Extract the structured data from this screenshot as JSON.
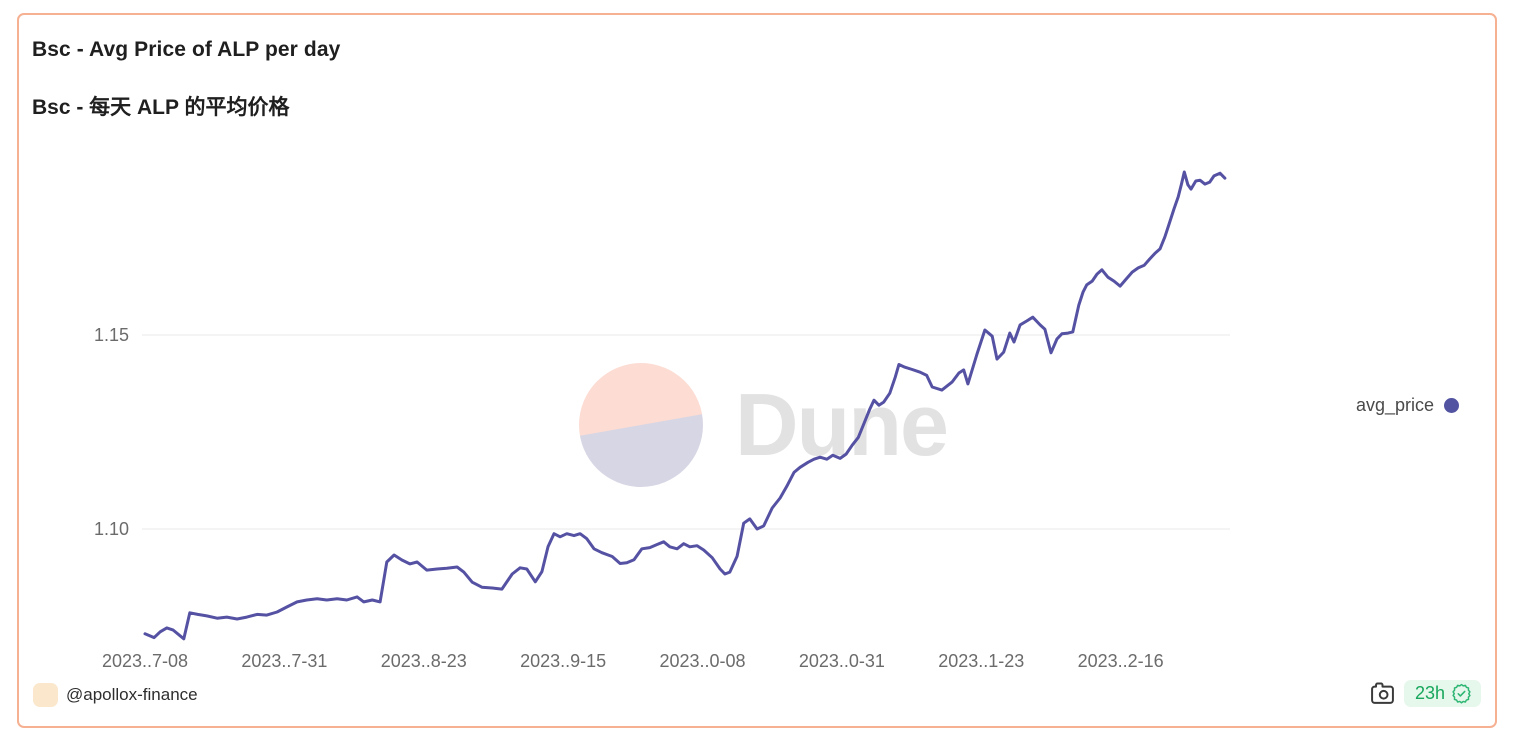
{
  "card": {
    "title": "Bsc - Avg Price of ALP per day",
    "subtitle": "Bsc - 每天 ALP 的平均价格",
    "border_color": "#f6b092"
  },
  "legend": {
    "label": "avg_price",
    "dot_color": "#5254a2"
  },
  "watermark": {
    "brand": "Dune",
    "circle_top_color": "#fcdcd3",
    "circle_bottom_color": "#d7d6e4"
  },
  "footer": {
    "author": "@apollox-finance",
    "avatar_color": "#fbe7cb",
    "refresh_badge": {
      "label": "23h",
      "text_color": "#18a75c",
      "bg_color": "#e6f7ec",
      "icon_color": "#2eb673"
    },
    "camera_icon_color": "#3a3a3a"
  },
  "chart_data": {
    "type": "line",
    "title": "Bsc - Avg Price of ALP per day",
    "xlabel": "",
    "ylabel": "",
    "series_name": "avg_price",
    "line_color": "#5551a3",
    "grid": "horizontal-only",
    "grid_color": "#e9e9e9",
    "legend_position": "right",
    "x_start_date": "2023-07-08",
    "x_unit": "days since 2023-07-08 (daily series)",
    "x_tick_days": [
      0,
      23,
      46,
      69,
      92,
      115,
      138,
      161
    ],
    "x_tick_labels": [
      "2023..7-08",
      "2023..7-31",
      "2023..8-23",
      "2023..9-15",
      "2023..0-08",
      "2023..0-31",
      "2023..1-23",
      "2023..2-16"
    ],
    "y_ticks": [
      1.15,
      1.1
    ],
    "ylim": [
      1.065,
      1.2
    ],
    "xlim_days": [
      0,
      179
    ],
    "points": [
      [
        0,
        1.073
      ],
      [
        1.5,
        1.072
      ],
      [
        2.5,
        1.0735
      ],
      [
        3.6,
        1.0745
      ],
      [
        4.6,
        1.074
      ],
      [
        6.4,
        1.0717
      ],
      [
        7.4,
        1.0784
      ],
      [
        8.7,
        1.078
      ],
      [
        10.2,
        1.0776
      ],
      [
        11.9,
        1.077
      ],
      [
        13.5,
        1.0773
      ],
      [
        15.2,
        1.0768
      ],
      [
        16.8,
        1.0773
      ],
      [
        18.5,
        1.078
      ],
      [
        20.1,
        1.0778
      ],
      [
        21.8,
        1.0786
      ],
      [
        23.4,
        1.0799
      ],
      [
        25.1,
        1.0812
      ],
      [
        26.7,
        1.0817
      ],
      [
        28.4,
        1.082
      ],
      [
        30,
        1.0817
      ],
      [
        31.7,
        1.082
      ],
      [
        33.3,
        1.0817
      ],
      [
        35,
        1.0825
      ],
      [
        36.1,
        1.0812
      ],
      [
        37.5,
        1.0817
      ],
      [
        38.8,
        1.0812
      ],
      [
        39.9,
        1.0915
      ],
      [
        41.1,
        1.0933
      ],
      [
        42.4,
        1.092
      ],
      [
        43.7,
        1.091
      ],
      [
        44.9,
        1.0915
      ],
      [
        46.5,
        1.0894
      ],
      [
        48.2,
        1.0897
      ],
      [
        49.8,
        1.0899
      ],
      [
        51.5,
        1.0902
      ],
      [
        52.6,
        1.0889
      ],
      [
        54,
        1.0863
      ],
      [
        55.6,
        1.085
      ],
      [
        57.3,
        1.0848
      ],
      [
        58.9,
        1.0845
      ],
      [
        60.6,
        1.0884
      ],
      [
        61.9,
        1.09
      ],
      [
        63,
        1.0897
      ],
      [
        64.4,
        1.0864
      ],
      [
        65.5,
        1.089
      ],
      [
        66.5,
        1.0954
      ],
      [
        67.5,
        1.0988
      ],
      [
        68.5,
        1.098
      ],
      [
        69.6,
        1.0988
      ],
      [
        70.8,
        1.0983
      ],
      [
        71.8,
        1.0988
      ],
      [
        72.9,
        1.0975
      ],
      [
        74.1,
        1.0949
      ],
      [
        75.4,
        1.0939
      ],
      [
        77.1,
        1.0929
      ],
      [
        78.4,
        1.0911
      ],
      [
        79.5,
        1.0913
      ],
      [
        80.7,
        1.0921
      ],
      [
        82,
        1.0949
      ],
      [
        83.3,
        1.0952
      ],
      [
        84.5,
        1.096
      ],
      [
        85.6,
        1.0967
      ],
      [
        86.6,
        1.0954
      ],
      [
        87.8,
        1.0949
      ],
      [
        88.9,
        1.0962
      ],
      [
        89.9,
        1.0954
      ],
      [
        91.1,
        1.0957
      ],
      [
        92.2,
        1.0946
      ],
      [
        93.6,
        1.0926
      ],
      [
        94.9,
        1.0897
      ],
      [
        95.7,
        1.0884
      ],
      [
        96.5,
        1.0889
      ],
      [
        97.7,
        1.093
      ],
      [
        98.8,
        1.1015
      ],
      [
        99.8,
        1.1026
      ],
      [
        101,
        1.1
      ],
      [
        102.1,
        1.1008
      ],
      [
        103.5,
        1.1054
      ],
      [
        104.8,
        1.108
      ],
      [
        105.9,
        1.111
      ],
      [
        107.1,
        1.1146
      ],
      [
        108.1,
        1.1159
      ],
      [
        109.4,
        1.1172
      ],
      [
        110.4,
        1.118
      ],
      [
        111.4,
        1.1185
      ],
      [
        112.5,
        1.118
      ],
      [
        113.5,
        1.119
      ],
      [
        114.7,
        1.1182
      ],
      [
        115.7,
        1.1193
      ],
      [
        116.7,
        1.1216
      ],
      [
        117.7,
        1.1236
      ],
      [
        118.6,
        1.127
      ],
      [
        119.6,
        1.1309
      ],
      [
        120.3,
        1.1332
      ],
      [
        121.1,
        1.1319
      ],
      [
        121.9,
        1.1327
      ],
      [
        122.9,
        1.135
      ],
      [
        123.8,
        1.1391
      ],
      [
        124.4,
        1.1424
      ],
      [
        125.4,
        1.1417
      ],
      [
        126.6,
        1.1411
      ],
      [
        127.9,
        1.1404
      ],
      [
        129,
        1.1396
      ],
      [
        129.9,
        1.1366
      ],
      [
        131.5,
        1.1358
      ],
      [
        133.2,
        1.1379
      ],
      [
        134.3,
        1.1402
      ],
      [
        135.1,
        1.141
      ],
      [
        135.8,
        1.1374
      ],
      [
        137.3,
        1.1451
      ],
      [
        138.6,
        1.1513
      ],
      [
        139.8,
        1.1497
      ],
      [
        140.6,
        1.1438
      ],
      [
        141.7,
        1.1456
      ],
      [
        142.7,
        1.1505
      ],
      [
        143.4,
        1.1482
      ],
      [
        144.4,
        1.1526
      ],
      [
        145.5,
        1.1536
      ],
      [
        146.5,
        1.1546
      ],
      [
        147.7,
        1.1526
      ],
      [
        148.5,
        1.1515
      ],
      [
        149.5,
        1.1454
      ],
      [
        150.5,
        1.149
      ],
      [
        151.3,
        1.1503
      ],
      [
        152.3,
        1.1505
      ],
      [
        153.1,
        1.1508
      ],
      [
        154.1,
        1.1577
      ],
      [
        154.8,
        1.1611
      ],
      [
        155.4,
        1.1629
      ],
      [
        156.3,
        1.1639
      ],
      [
        157.1,
        1.1657
      ],
      [
        157.9,
        1.1668
      ],
      [
        158.9,
        1.1649
      ],
      [
        159.9,
        1.1639
      ],
      [
        160.9,
        1.1626
      ],
      [
        161.9,
        1.1644
      ],
      [
        162.9,
        1.1662
      ],
      [
        163.9,
        1.1673
      ],
      [
        164.9,
        1.168
      ],
      [
        165.8,
        1.1696
      ],
      [
        166.7,
        1.1711
      ],
      [
        167.5,
        1.1722
      ],
      [
        168.3,
        1.1753
      ],
      [
        169,
        1.1786
      ],
      [
        169.8,
        1.1825
      ],
      [
        170.5,
        1.1856
      ],
      [
        171,
        1.1887
      ],
      [
        171.5,
        1.192
      ],
      [
        172.1,
        1.1887
      ],
      [
        172.6,
        1.1876
      ],
      [
        173.4,
        1.1897
      ],
      [
        174.1,
        1.1899
      ],
      [
        174.9,
        1.1889
      ],
      [
        175.7,
        1.1894
      ],
      [
        176.4,
        1.191
      ],
      [
        177.4,
        1.1917
      ],
      [
        178.2,
        1.1904
      ]
    ]
  }
}
